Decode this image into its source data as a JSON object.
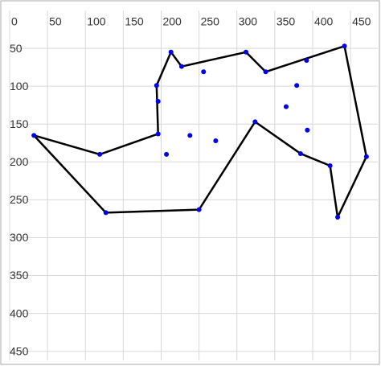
{
  "chart_data": {
    "type": "scatter",
    "xlim": [
      0,
      486
    ],
    "ylim": [
      462,
      0
    ],
    "xticks": [
      0,
      50,
      100,
      150,
      200,
      250,
      300,
      350,
      400,
      450
    ],
    "yticks": [
      50,
      100,
      150,
      200,
      250,
      300,
      350,
      400,
      450
    ],
    "grid": true,
    "series": [
      {
        "color": "#000000",
        "marker_color": "#0000ee",
        "line": true,
        "closed": true,
        "x": [
          32,
          119,
          196,
          194,
          213,
          227,
          312,
          338,
          442,
          471,
          433,
          423,
          384,
          324,
          250,
          127
        ],
        "y": [
          165,
          190,
          163,
          99,
          55,
          74,
          55,
          81,
          47,
          193,
          273,
          205,
          189,
          147,
          263,
          267
        ]
      },
      {
        "marker_color": "#0000ee",
        "line": false,
        "x": [
          196,
          256,
          238,
          207,
          272,
          379,
          392,
          365,
          393
        ],
        "y": [
          120,
          81,
          165,
          190,
          172,
          99,
          66,
          127,
          158
        ]
      }
    ]
  }
}
